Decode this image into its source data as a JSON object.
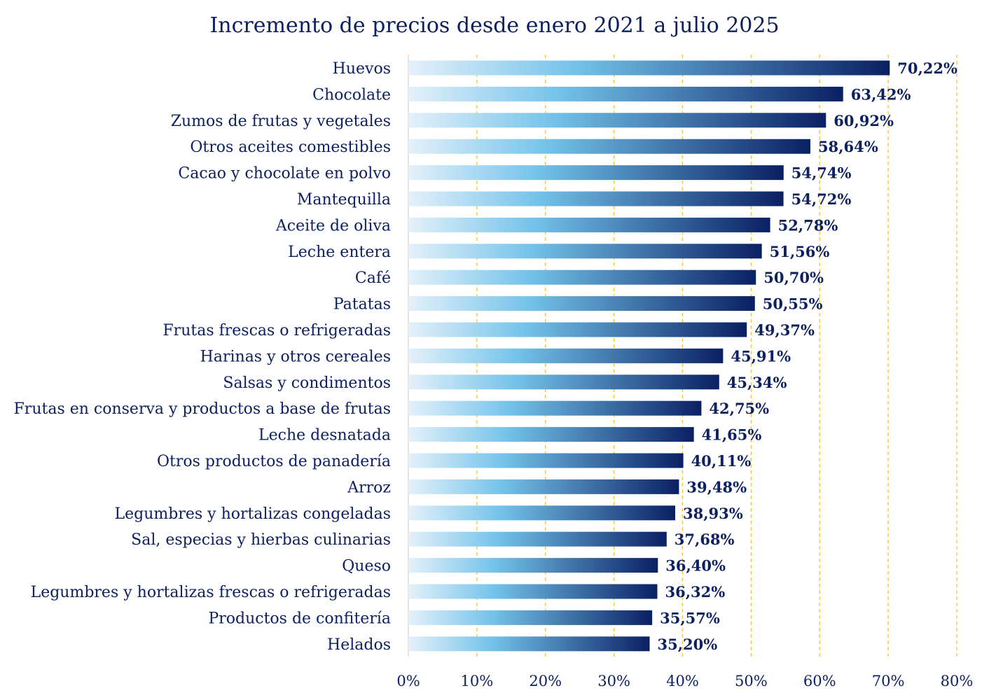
{
  "chart_data": {
    "type": "bar",
    "orientation": "horizontal",
    "title": "Incremento de precios desde enero 2021 a julio 2025",
    "xlabel": "",
    "ylabel": "",
    "xlim": [
      0,
      80
    ],
    "x_ticks": [
      "0%",
      "10%",
      "20%",
      "30%",
      "40%",
      "50%",
      "60%",
      "70%",
      "80%"
    ],
    "grid": "vertical dashed",
    "categories": [
      "Huevos",
      "Chocolate",
      "Zumos de frutas y vegetales",
      "Otros aceites comestibles",
      "Cacao y chocolate en polvo",
      "Mantequilla",
      "Aceite de oliva",
      "Leche entera",
      "Café",
      "Patatas",
      "Frutas frescas o refrigeradas",
      "Harinas y otros cereales",
      "Salsas y condimentos",
      "Frutas en conserva y productos a base de frutas",
      "Leche desnatada",
      "Otros productos de panadería",
      "Arroz",
      "Legumbres y hortalizas congeladas",
      "Sal, especias y hierbas culinarias",
      "Queso",
      "Legumbres y hortalizas frescas o refrigeradas",
      "Productos de confitería",
      "Helados"
    ],
    "values": [
      70.22,
      63.42,
      60.92,
      58.64,
      54.74,
      54.72,
      52.78,
      51.56,
      50.7,
      50.55,
      49.37,
      45.91,
      45.34,
      42.75,
      41.65,
      40.11,
      39.48,
      38.93,
      37.68,
      36.4,
      36.32,
      35.57,
      35.2
    ],
    "value_labels": [
      "70,22%",
      "63,42%",
      "60,92%",
      "58,64%",
      "54,74%",
      "54,72%",
      "52,78%",
      "51,56%",
      "50,70%",
      "50,55%",
      "49,37%",
      "45,91%",
      "45,34%",
      "42,75%",
      "41,65%",
      "40,11%",
      "39,48%",
      "38,93%",
      "37,68%",
      "36,40%",
      "36,32%",
      "35,57%",
      "35,20%"
    ],
    "colors": {
      "text": "#0d2160",
      "gridline": "#f5c242",
      "axis": "#c8c8c8",
      "bar_gradient": [
        "#e4f1fa",
        "#72c2ea",
        "#0a2063"
      ]
    }
  }
}
